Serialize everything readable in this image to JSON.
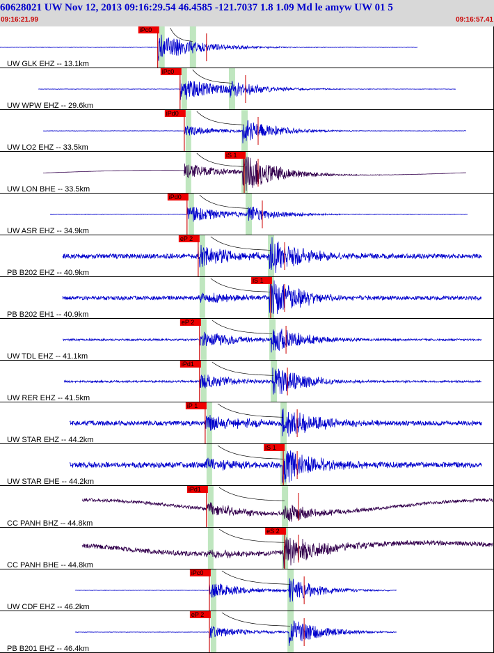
{
  "header": {
    "title": "60628021 UW Nov 12, 2013 09:16:29.54   46.4585 -121.7037  1.8 1.09 Md le amyw UW 01    5",
    "start_time": "09:16:21.99",
    "end_time": "09:16:57.41"
  },
  "chart_data": {
    "type": "line",
    "time_range": [
      "09:16:21.99",
      "09:16:57.41"
    ],
    "traces": [
      {
        "label": "UW GLK EHZ -- 13.1km",
        "dist_km": 13.1,
        "color": "#0000cc",
        "pick": "iPc0",
        "p_time": "09:16:33.3",
        "s_time": "09:16:35.8",
        "start": 0.0,
        "end": 600,
        "amp": 0.8,
        "noise": 0.01,
        "swave": 0.0
      },
      {
        "label": "UW WPW EHZ -- 29.6km",
        "dist_km": 29.6,
        "color": "#0000cc",
        "pick": "iPc0",
        "p_time": "09:16:34.9",
        "s_time": "09:16:38.6",
        "start": 55,
        "end": 655,
        "amp": 0.7,
        "noise": 0.01,
        "swave": 0.4
      },
      {
        "label": "UW LO2 EHZ -- 33.5km",
        "dist_km": 33.5,
        "color": "#0000cc",
        "pick": "iPd0",
        "p_time": "09:16:35.2",
        "s_time": "09:16:39.5",
        "start": 62,
        "end": 670,
        "amp": 0.3,
        "noise": 0.01,
        "swave": 0.6
      },
      {
        "label": "UW LON BHE -- 33.5km",
        "dist_km": 33.5,
        "color": "#33004d",
        "pick": "iS 1",
        "p_time": "09:16:35.2",
        "s_time": "09:16:39.5",
        "start": 62,
        "end": 670,
        "amp": 0.45,
        "noise": 0.0,
        "swave": 1.0,
        "longperiod": 0.12
      },
      {
        "label": "UW ASR EHZ -- 34.9km",
        "dist_km": 34.9,
        "color": "#0000cc",
        "pick": "iPd0",
        "p_time": "09:16:35.4",
        "s_time": "09:16:39.8",
        "start": 72,
        "end": 672,
        "amp": 0.5,
        "noise": 0.01,
        "swave": 0.4
      },
      {
        "label": "PB B202 EHZ -- 40.9km",
        "dist_km": 40.9,
        "color": "#0000cc",
        "pick": "eP 2",
        "p_time": "09:16:36.2",
        "s_time": "09:16:41.4",
        "start": 90,
        "end": 692,
        "amp": 0.6,
        "noise": 0.12,
        "swave": 0.9
      },
      {
        "label": "PB B202 EH1 -- 40.9km",
        "dist_km": 40.9,
        "color": "#0000cc",
        "pick": "iS 1",
        "p_time": "09:16:36.2",
        "s_time": "09:16:41.4",
        "start": 90,
        "end": 692,
        "amp": 0.3,
        "noise": 0.1,
        "swave": 1.0
      },
      {
        "label": "UW TDL EHZ -- 41.1km",
        "dist_km": 41.1,
        "color": "#0000cc",
        "pick": "eP 2",
        "p_time": "09:16:36.3",
        "s_time": "09:16:41.5",
        "start": 90,
        "end": 692,
        "amp": 0.5,
        "noise": 0.05,
        "swave": 0.7
      },
      {
        "label": "UW RER EHZ -- 41.5km",
        "dist_km": 41.5,
        "color": "#0000cc",
        "pick": "iPd1",
        "p_time": "09:16:36.3",
        "s_time": "09:16:41.6",
        "start": 92,
        "end": 692,
        "amp": 0.45,
        "noise": 0.05,
        "swave": 0.8
      },
      {
        "label": "UW STAR EHZ -- 44.2km",
        "dist_km": 44.2,
        "color": "#0000cc",
        "pick": "iP 1",
        "p_time": "09:16:36.7",
        "s_time": "09:16:42.3",
        "start": 100,
        "end": 692,
        "amp": 0.45,
        "noise": 0.12,
        "swave": 0.8
      },
      {
        "label": "UW STAR EHE -- 44.2km",
        "dist_km": 44.2,
        "color": "#0000cc",
        "pick": "iS 1",
        "p_time": "09:16:36.7",
        "s_time": "09:16:42.3",
        "start": 100,
        "end": 692,
        "amp": 0.3,
        "noise": 0.14,
        "swave": 0.9
      },
      {
        "label": "CC PANH BHZ -- 44.8km",
        "dist_km": 44.8,
        "color": "#33004d",
        "pick": "iPd1",
        "p_time": "09:16:36.8",
        "s_time": "09:16:42.4",
        "start": 118,
        "end": 708,
        "amp": 0.4,
        "noise": 0.08,
        "swave": 0.5,
        "longperiod": 0.35
      },
      {
        "label": "CC PANH BHE -- 44.8km",
        "dist_km": 44.8,
        "color": "#33004d",
        "pick": "eS 2",
        "p_time": "09:16:36.8",
        "s_time": "09:16:42.4",
        "start": 118,
        "end": 708,
        "amp": 0.2,
        "noise": 0.12,
        "swave": 0.9,
        "longperiod": 0.3
      },
      {
        "label": "UW CDF EHZ -- 46.2km",
        "dist_km": 46.2,
        "color": "#0000cc",
        "pick": "iPc0",
        "p_time": "09:16:37.0",
        "s_time": "09:16:42.8",
        "start": 108,
        "end": 570,
        "amp": 0.45,
        "noise": 0.01,
        "swave": 0.6
      },
      {
        "label": "PB B201 EHZ -- 46.4km",
        "dist_km": 46.4,
        "color": "#0000cc",
        "pick": "eP 2",
        "p_time": "09:16:37.0",
        "s_time": "09:16:42.8",
        "start": 108,
        "end": 570,
        "amp": 0.35,
        "noise": 0.01,
        "swave": 0.7
      }
    ]
  }
}
